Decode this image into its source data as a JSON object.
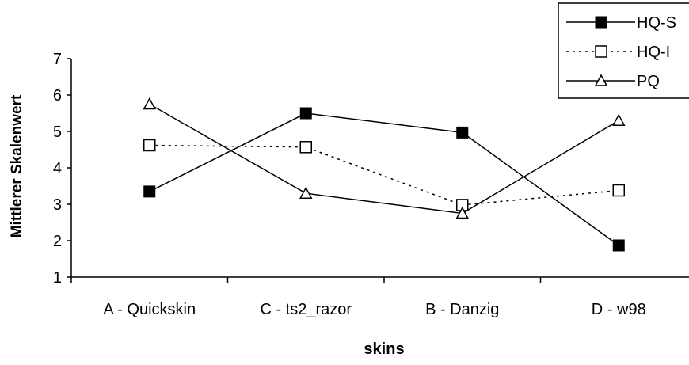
{
  "chart_data": {
    "type": "line",
    "title": "",
    "xlabel": "skins",
    "ylabel": "Mittlerer Skalenwert",
    "ylim": [
      1,
      7
    ],
    "yticks": [
      "1",
      "2",
      "3",
      "4",
      "5",
      "6",
      "7"
    ],
    "categories": [
      "A - Quickskin",
      "C - ts2_razor",
      "B - Danzig",
      "D - w98"
    ],
    "grid": false,
    "legend_position": "top-right",
    "series": [
      {
        "name": "HQ-S",
        "values": [
          3.35,
          5.5,
          4.97,
          1.87
        ],
        "marker": "filled-square",
        "line": "solid",
        "color": "#000000"
      },
      {
        "name": "HQ-I",
        "values": [
          4.62,
          4.57,
          2.98,
          3.38
        ],
        "marker": "open-square",
        "line": "dotted",
        "color": "#000000"
      },
      {
        "name": "PQ",
        "values": [
          5.75,
          3.3,
          2.75,
          5.3
        ],
        "marker": "open-triangle",
        "line": "solid",
        "color": "#000000"
      }
    ]
  }
}
